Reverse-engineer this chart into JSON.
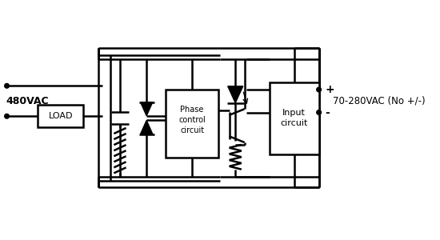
{
  "bg_color": "#ffffff",
  "line_color": "#000000",
  "line_width": 1.8,
  "fig_width": 5.5,
  "fig_height": 3.0,
  "label_480vac": "480VAC",
  "label_load": "LOAD",
  "label_phase": "Phase\ncontrol\ncircuit",
  "label_input": "Input\ncircuit",
  "label_70_280": "70-280VAC (No +/-)",
  "label_plus": "+",
  "label_minus": "-"
}
